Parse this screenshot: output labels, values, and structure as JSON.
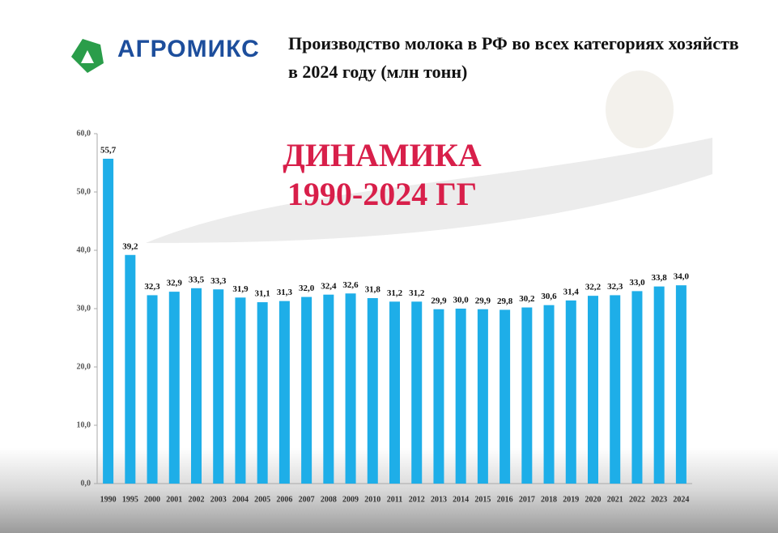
{
  "brand": "АГРОМИКС",
  "chart_data": {
    "type": "bar",
    "title": "Производство молока в РФ во всех категориях хозяйств в 2024 году (млн тонн)",
    "annotations": [
      "ДИНАМИКА",
      "1990-2024 ГГ"
    ],
    "categories": [
      "1990",
      "1995",
      "2000",
      "2001",
      "2002",
      "2003",
      "2004",
      "2005",
      "2006",
      "2007",
      "2008",
      "2009",
      "2010",
      "2011",
      "2012",
      "2013",
      "2014",
      "2015",
      "2016",
      "2017",
      "2018",
      "2019",
      "2020",
      "2021",
      "2022",
      "2023",
      "2024"
    ],
    "values": [
      55.7,
      39.2,
      32.3,
      32.9,
      33.5,
      33.3,
      31.9,
      31.1,
      31.3,
      32.0,
      32.4,
      32.6,
      31.8,
      31.2,
      31.2,
      29.9,
      30.0,
      29.9,
      29.8,
      30.2,
      30.6,
      31.4,
      32.2,
      32.3,
      33.0,
      33.8,
      34.0
    ],
    "value_labels": [
      "55,7",
      "39,2",
      "32,3",
      "32,9",
      "33,5",
      "33,3",
      "31,9",
      "31,1",
      "31,3",
      "32,0",
      "32,4",
      "32,6",
      "31,8",
      "31,2",
      "31,2",
      "29,9",
      "30,0",
      "29,9",
      "29,8",
      "30,2",
      "30,6",
      "31,4",
      "32,2",
      "32,3",
      "33,0",
      "33,8",
      "34,0"
    ],
    "color": "#1eaee8",
    "ylim": [
      0,
      60
    ],
    "yticks": [
      {
        "value": 0,
        "label": "0,0"
      },
      {
        "value": 10,
        "label": "10,0"
      },
      {
        "value": 20,
        "label": "20,0"
      },
      {
        "value": 30,
        "label": "30,0"
      },
      {
        "value": 40,
        "label": "40,0"
      },
      {
        "value": 50,
        "label": "50,0"
      },
      {
        "value": 60,
        "label": "60,0"
      }
    ],
    "grid": false
  }
}
